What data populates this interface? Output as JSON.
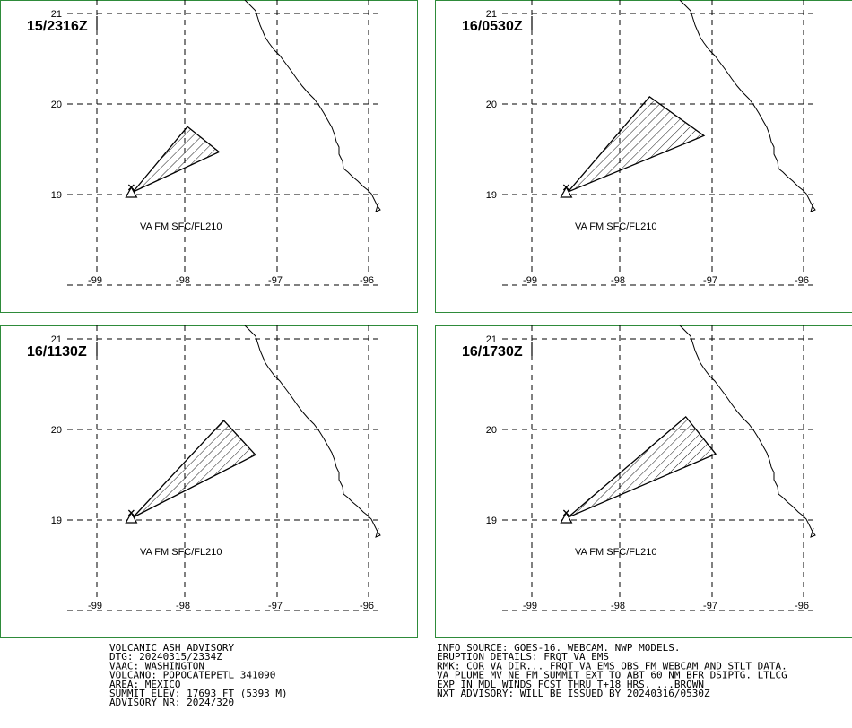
{
  "map": {
    "lat_labels": [
      "21",
      "20",
      "19"
    ],
    "lon_labels": [
      "-99",
      "-98",
      "-97",
      "-96"
    ],
    "panels": [
      {
        "valid_time": "15/2316Z",
        "plume_label": "VA FM SFC/FL210",
        "plume": [
          [
            -98.6,
            19.03
          ],
          [
            -98.0,
            19.75
          ],
          [
            -97.65,
            19.47
          ]
        ]
      },
      {
        "valid_time": "16/0530Z",
        "plume_label": "VA FM SFC/FL210",
        "plume": [
          [
            -98.6,
            19.03
          ],
          [
            -97.7,
            20.08
          ],
          [
            -97.1,
            19.65
          ]
        ]
      },
      {
        "valid_time": "16/1130Z",
        "plume_label": "VA FM SFC/FL210",
        "plume": [
          [
            -98.6,
            19.03
          ],
          [
            -97.6,
            20.1
          ],
          [
            -97.25,
            19.72
          ]
        ]
      },
      {
        "valid_time": "16/1730Z",
        "plume_label": "VA FM SFC/FL210",
        "plume": [
          [
            -98.6,
            19.03
          ],
          [
            -97.3,
            20.14
          ],
          [
            -96.97,
            19.73
          ]
        ]
      }
    ]
  },
  "advisory_left": [
    "VOLCANIC ASH ADVISORY",
    "DTG: 20240315/2334Z",
    "VAAC: WASHINGTON",
    "VOLCANO: POPOCATEPETL 341090",
    "AREA: MEXICO",
    "SUMMIT ELEV: 17693 FT (5393 M)",
    "ADVISORY NR: 2024/320"
  ],
  "advisory_right": [
    "INFO SOURCE: GOES-16. WEBCAM. NWP MODELS.",
    "ERUPTION DETAILS: FRQT VA EMS",
    "RMK: COR VA DIR... FRQT VA EMS OBS FM WEBCAM AND STLT DATA.",
    "VA PLUME MV NE FM SUMMIT EXT TO ABT 60 NM BFR DSIPTG. LTLCG",
    "EXP IN MDL WINDS FCST THRU T+18 HRS. ...BROWN",
    "NXT ADVISORY: WILL BE ISSUED BY 20240316/0530Z"
  ]
}
